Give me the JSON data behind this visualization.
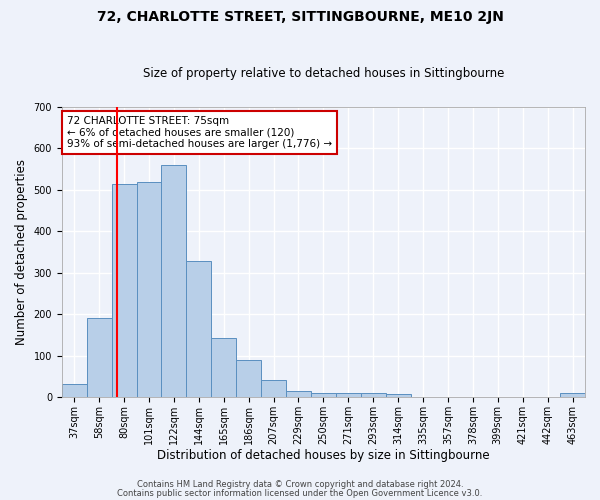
{
  "title": "72, CHARLOTTE STREET, SITTINGBOURNE, ME10 2JN",
  "subtitle": "Size of property relative to detached houses in Sittingbourne",
  "xlabel": "Distribution of detached houses by size in Sittingbourne",
  "ylabel": "Number of detached properties",
  "categories": [
    "37sqm",
    "58sqm",
    "80sqm",
    "101sqm",
    "122sqm",
    "144sqm",
    "165sqm",
    "186sqm",
    "207sqm",
    "229sqm",
    "250sqm",
    "271sqm",
    "293sqm",
    "314sqm",
    "335sqm",
    "357sqm",
    "378sqm",
    "399sqm",
    "421sqm",
    "442sqm",
    "463sqm"
  ],
  "values": [
    32,
    190,
    515,
    518,
    560,
    328,
    142,
    88,
    42,
    14,
    10,
    10,
    10,
    7,
    0,
    0,
    0,
    0,
    0,
    0,
    10
  ],
  "bar_color": "#b8cfe8",
  "bar_edge_color": "#5a8fc0",
  "red_line_x": 1.72,
  "annotation_text": "72 CHARLOTTE STREET: 75sqm\n← 6% of detached houses are smaller (120)\n93% of semi-detached houses are larger (1,776) →",
  "annotation_box_color": "#ffffff",
  "annotation_box_edge_color": "#cc0000",
  "footer_line1": "Contains HM Land Registry data © Crown copyright and database right 2024.",
  "footer_line2": "Contains public sector information licensed under the Open Government Licence v3.0.",
  "background_color": "#eef2fa",
  "grid_color": "#ffffff",
  "ylim": [
    0,
    700
  ],
  "title_fontsize": 10,
  "subtitle_fontsize": 8.5,
  "tick_fontsize": 7,
  "axis_label_fontsize": 8.5,
  "annotation_fontsize": 7.5,
  "footer_fontsize": 6
}
